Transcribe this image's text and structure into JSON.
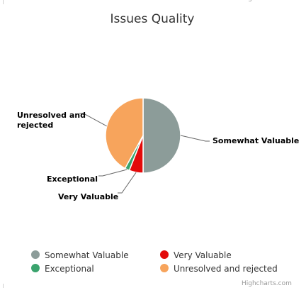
{
  "chart_data": {
    "type": "pie",
    "title": "Issues Quality",
    "credit": "Highcharts.com",
    "slices": [
      {
        "name": "Somewhat Valuable",
        "value": 50,
        "color": "#8c9c99"
      },
      {
        "name": "Very Valuable",
        "value": 6,
        "color": "#e30a0a"
      },
      {
        "name": "Exceptional",
        "value": 2,
        "color": "#3aa36d"
      },
      {
        "name": "Unresolved and rejected",
        "value": 42,
        "color": "#f7a45c"
      }
    ],
    "data_labels": [
      "Somewhat Valuable",
      "Very Valuable",
      "Exceptional",
      "Unresolved and\nrejected"
    ],
    "legend": {
      "placement": "bottom",
      "items": [
        "Somewhat Valuable",
        "Very Valuable",
        "Exceptional",
        "Unresolved and rejected"
      ]
    }
  }
}
